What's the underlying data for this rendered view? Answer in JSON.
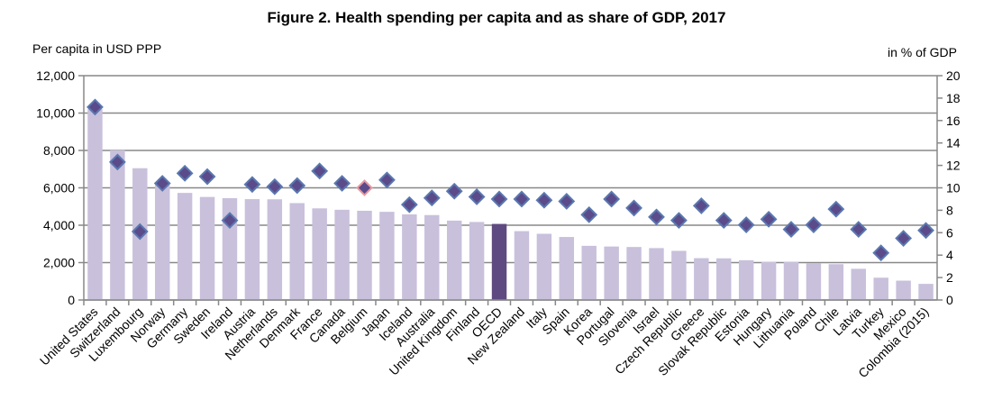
{
  "chart_data": {
    "type": "bar",
    "title": "Figure 2. Health spending per capita and as share of GDP, 2017",
    "ylabel": "Per capita in USD PPP",
    "y2label": "in % of GDP",
    "ylim": [
      0,
      12000
    ],
    "y2lim": [
      0,
      20
    ],
    "yticks": [
      "0",
      "2,000",
      "4,000",
      "6,000",
      "8,000",
      "10,000",
      "12,000"
    ],
    "y2ticks": [
      "0",
      "2",
      "4",
      "6",
      "8",
      "10",
      "12",
      "14",
      "16",
      "18",
      "20"
    ],
    "grid": true,
    "colors": {
      "bar": "#c9c0dc",
      "highlight_bar": "#5e4a80",
      "diamond": "#5b4b8a",
      "diamond_edge": "#5a78b0",
      "highlight_diamond_edge": "#e59aa0"
    },
    "highlight": "OECD",
    "highlight_diamond": "Belgium",
    "categories": [
      "United States",
      "Switzerland",
      "Luxembourg",
      "Norway",
      "Germany",
      "Sweden",
      "Ireland",
      "Austria",
      "Netherlands",
      "Denmark",
      "France",
      "Canada",
      "Belgium",
      "Japan",
      "Iceland",
      "Australia",
      "United Kingdom",
      "Finland",
      "OECD",
      "New Zealand",
      "Italy",
      "Spain",
      "Korea",
      "Portugal",
      "Slovenia",
      "Israel",
      "Czech Republic",
      "Greece",
      "Slovak Republic",
      "Estonia",
      "Hungary",
      "Lithuania",
      "Poland",
      "Chile",
      "Latvia",
      "Turkey",
      "Mexico",
      "Colombia (2015)"
    ],
    "series": [
      {
        "type": "bar",
        "axis": "left",
        "values": [
          10209,
          8009,
          7049,
          6187,
          5728,
          5511,
          5449,
          5395,
          5386,
          5183,
          4902,
          4826,
          4774,
          4717,
          4581,
          4543,
          4246,
          4173,
          4069,
          3683,
          3542,
          3370,
          2897,
          2861,
          2835,
          2776,
          2629,
          2238,
          2228,
          2127,
          2047,
          2042,
          1955,
          1915,
          1668,
          1193,
          1034,
          862
        ]
      },
      {
        "type": "scatter",
        "marker": "diamond",
        "axis": "right",
        "values": [
          17.2,
          12.3,
          6.1,
          10.4,
          11.3,
          11.0,
          7.1,
          10.3,
          10.1,
          10.2,
          11.5,
          10.4,
          10.0,
          10.7,
          8.5,
          9.1,
          9.7,
          9.2,
          9.0,
          9.0,
          8.9,
          8.8,
          7.6,
          9.0,
          8.2,
          7.4,
          7.1,
          8.4,
          7.1,
          6.7,
          7.2,
          6.3,
          6.7,
          8.1,
          6.3,
          4.2,
          5.5,
          6.2
        ]
      }
    ]
  }
}
